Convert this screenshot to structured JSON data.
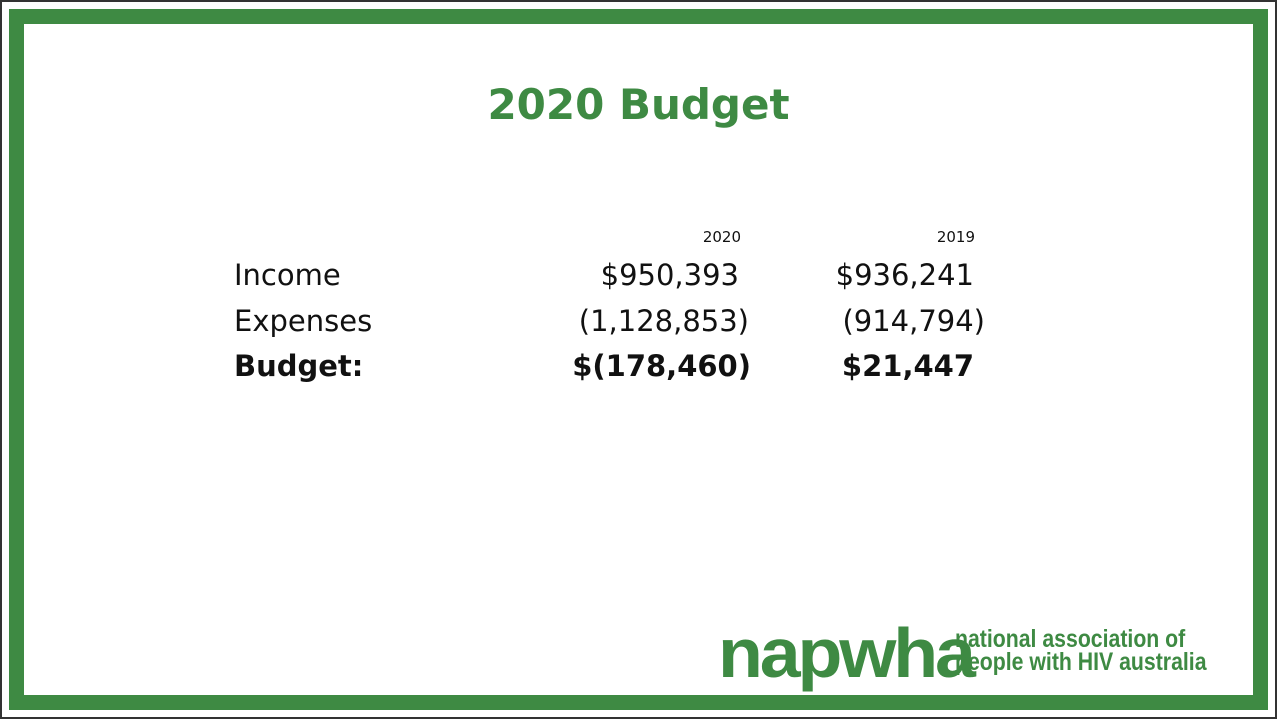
{
  "title": "2020 Budget",
  "table": {
    "header": [
      "2020",
      "2019"
    ],
    "rows": [
      [
        "Income",
        "$950,393",
        "$936,241"
      ],
      [
        "Expenses",
        "(1,128,853)",
        "(914,794)"
      ],
      [
        "Budget:",
        "$(178,460)",
        "$21,447"
      ]
    ]
  },
  "logo": {
    "name": "napwha",
    "tagline": [
      "national association of",
      "people with HIV australia"
    ]
  }
}
